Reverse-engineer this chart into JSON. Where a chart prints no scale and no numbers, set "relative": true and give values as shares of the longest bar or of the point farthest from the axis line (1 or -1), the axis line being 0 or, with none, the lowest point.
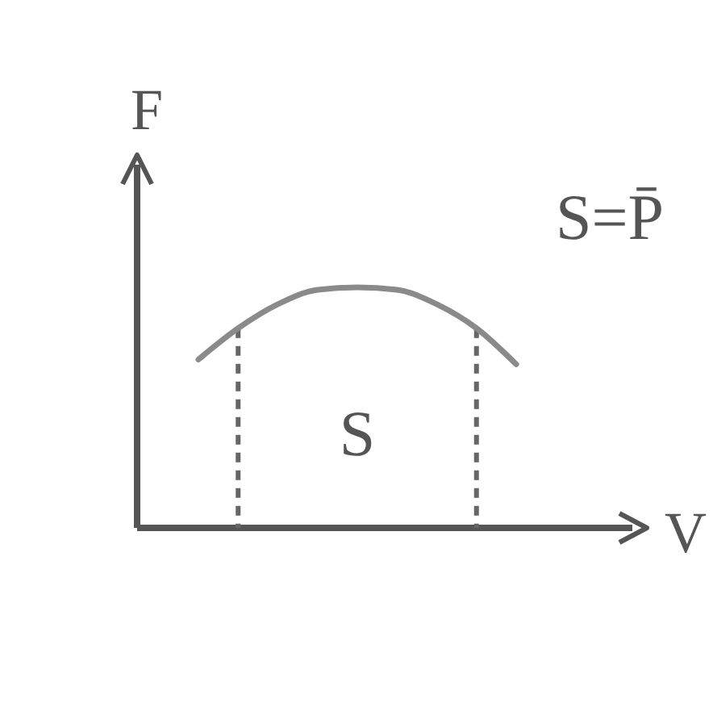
{
  "chart_data": {
    "type": "line",
    "relative": true,
    "xlabel": "V",
    "ylabel": "F",
    "categories": [
      null,
      null,
      null,
      null,
      null,
      null,
      null,
      null,
      null
    ],
    "series": [
      {
        "color": "#8a8a8a",
        "values": [
          0.7,
          0.83,
          0.93,
          0.99,
          1,
          0.99,
          0.93,
          0.83,
          0.68
        ]
      }
    ],
    "annotations": [
      "S",
      "S=P̄"
    ]
  }
}
